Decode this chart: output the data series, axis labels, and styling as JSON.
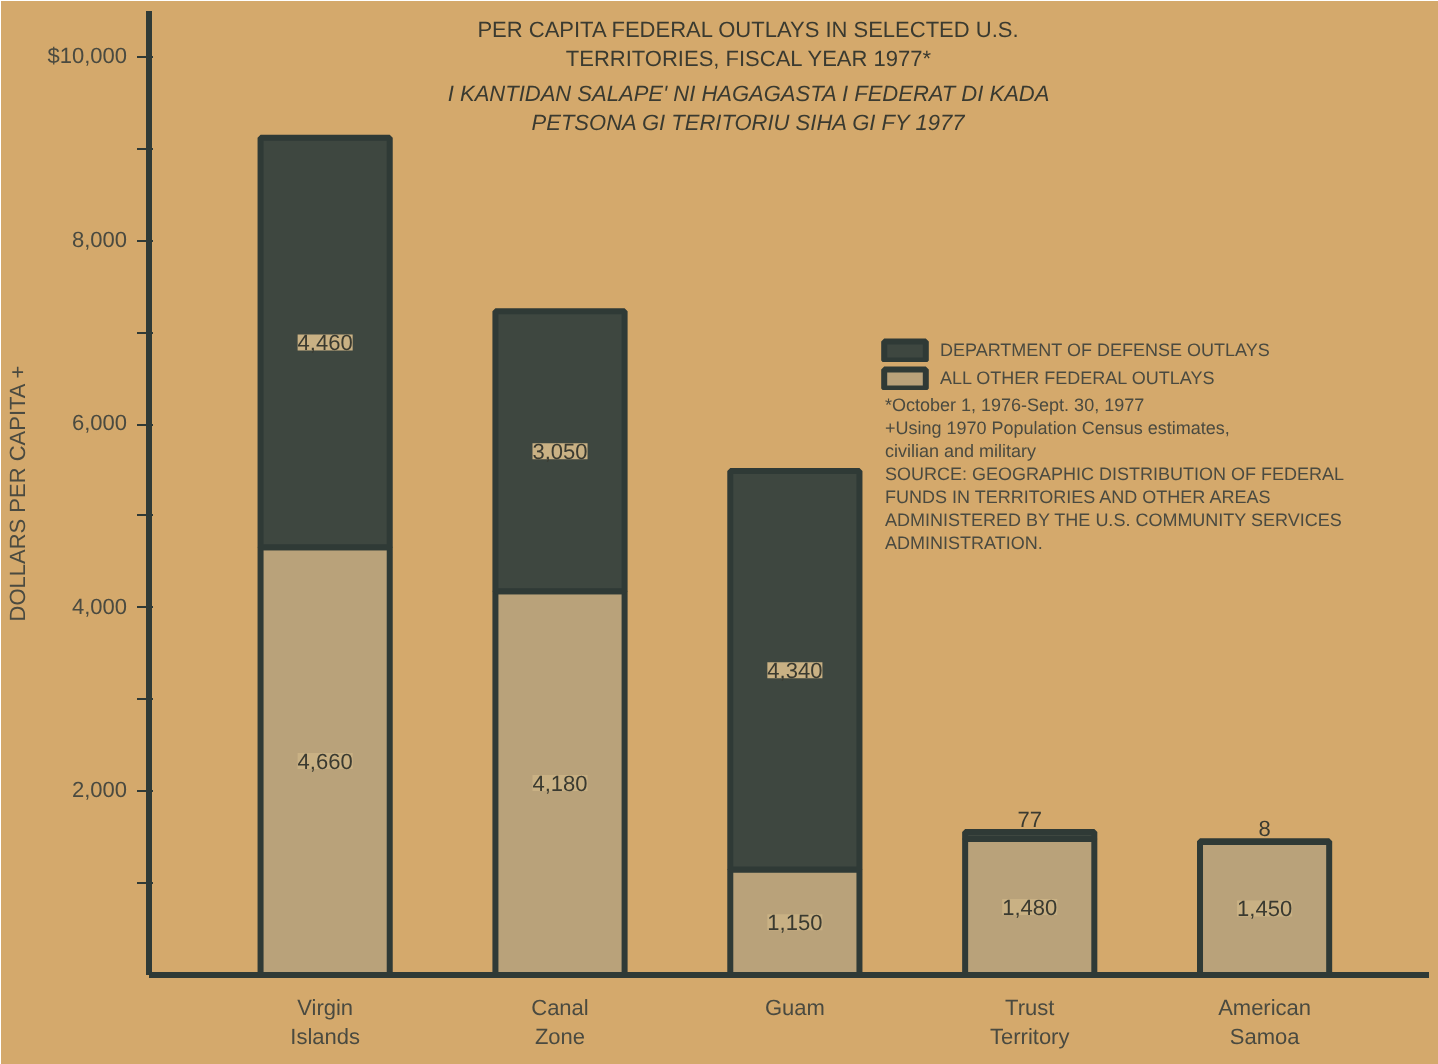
{
  "chart_data": {
    "type": "bar",
    "stacked": true,
    "title": "PER CAPITA FEDERAL OUTLAYS IN SELECTED U.S. TERRITORIES, FISCAL YEAR 1977*",
    "subtitle": "I KANTIDAN SALAPE' NI HAGAGASTA I FEDERAT DI KADA PETSONA GI TERITORIU SIHA GI FY 1977",
    "ylabel": "DOLLARS PER CAPITA +",
    "categories": [
      "Virgin Islands",
      "Canal Zone",
      "Guam",
      "Trust Territory",
      "American Samoa"
    ],
    "series": [
      {
        "name": "ALL OTHER FEDERAL OUTLAYS",
        "color": "#b9a27a",
        "values": [
          4660,
          4180,
          1150,
          1480,
          1450
        ],
        "value_labels": [
          "4,660",
          "4,180",
          "1,150",
          "1,480",
          "1,450"
        ]
      },
      {
        "name": "DEPARTMENT OF DEFENSE OUTLAYS",
        "color": "#3e4740",
        "values": [
          4460,
          3050,
          4340,
          77,
          8
        ],
        "value_labels": [
          "4,460",
          "3,050",
          "4,340",
          "77",
          "8"
        ]
      }
    ],
    "ylim": [
      0,
      10500
    ],
    "yticks": [
      {
        "value": 1000,
        "label": null
      },
      {
        "value": 2000,
        "label": "2,000"
      },
      {
        "value": 3000,
        "label": null
      },
      {
        "value": 4000,
        "label": "4,000"
      },
      {
        "value": 5000,
        "label": null
      },
      {
        "value": 6000,
        "label": "6,000"
      },
      {
        "value": 7000,
        "label": null
      },
      {
        "value": 8000,
        "label": "8,000"
      },
      {
        "value": 9000,
        "label": null
      },
      {
        "value": 10000,
        "label": "$10,000"
      }
    ],
    "grid": false,
    "legend": "right",
    "annotations": [
      "*October 1, 1976-Sept. 30, 1977",
      "+Using 1970 Population Census estimates, civilian and military",
      "SOURCE: GEOGRAPHIC DISTRIBUTION OF FEDERAL FUNDS IN TERRITORIES AND OTHER AREAS ADMINISTERED BY THE U.S. COMMUNITY SERVICES ADMINISTRATION."
    ]
  }
}
